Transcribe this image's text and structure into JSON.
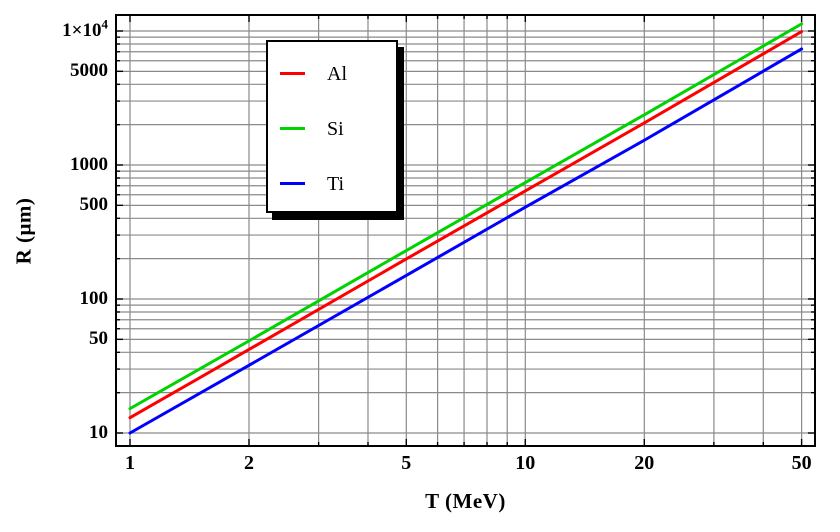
{
  "chart_data": {
    "type": "line",
    "title": "",
    "xlabel": "T (MeV)",
    "ylabel": "R (μm)",
    "x_scale": "log",
    "y_scale": "log",
    "x_range": [
      0.92,
      54
    ],
    "y_range": [
      8.0,
      13200
    ],
    "grid": true,
    "grid_color": "#8a8a8a",
    "frame_color": "#000000",
    "x_gridlines": [
      1,
      2,
      3,
      4,
      5,
      6,
      7,
      8,
      9,
      10,
      20,
      30,
      40,
      50
    ],
    "y_gridlines": [
      10,
      20,
      30,
      40,
      50,
      60,
      70,
      80,
      90,
      100,
      200,
      300,
      400,
      500,
      600,
      700,
      800,
      900,
      1000,
      2000,
      3000,
      4000,
      5000,
      6000,
      7000,
      8000,
      9000,
      10000
    ],
    "x_ticks": [
      {
        "value": 1,
        "label": "1"
      },
      {
        "value": 2,
        "label": "2"
      },
      {
        "value": 5,
        "label": "5"
      },
      {
        "value": 10,
        "label": "10"
      },
      {
        "value": 20,
        "label": "20"
      },
      {
        "value": 50,
        "label": "50"
      }
    ],
    "y_ticks": [
      {
        "value": 10000,
        "label": "1×10^4"
      },
      {
        "value": 5000,
        "label": "5000"
      },
      {
        "value": 1000,
        "label": "1000"
      },
      {
        "value": 500,
        "label": "500"
      },
      {
        "value": 100,
        "label": "100"
      },
      {
        "value": 50,
        "label": "50"
      },
      {
        "value": 10,
        "label": "10"
      }
    ],
    "x": [
      1,
      2,
      5,
      10,
      20,
      50
    ],
    "series": [
      {
        "name": "Al",
        "color": "#ff0000",
        "x": [
          1,
          2,
          5,
          10,
          20,
          50
        ],
        "values": [
          13,
          42,
          199,
          640,
          2060,
          9900
        ]
      },
      {
        "name": "Si",
        "color": "#00d300",
        "x": [
          1,
          2,
          5,
          10,
          20,
          50
        ],
        "values": [
          15.2,
          48.7,
          230,
          740,
          2370,
          11300
        ]
      },
      {
        "name": "Ti",
        "color": "#0000ff",
        "x": [
          1,
          2,
          5,
          10,
          20,
          50
        ],
        "values": [
          10,
          32,
          150,
          484,
          1530,
          7350
        ]
      }
    ],
    "legend": {
      "position": "top-left-inside",
      "entries": [
        "Al",
        "Si",
        "Ti"
      ]
    }
  }
}
